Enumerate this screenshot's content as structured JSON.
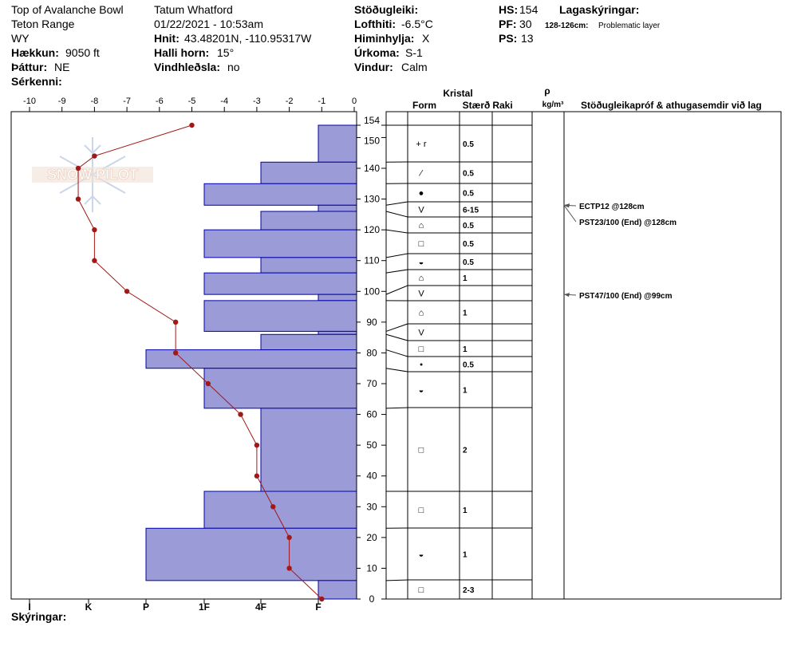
{
  "header": {
    "location": "Top of Avalanche Bowl",
    "range": "Teton Range",
    "state": "WY",
    "elevation_label": "Hækkun:",
    "elevation_value": "9050 ft",
    "aspect_label": "Þáttur:",
    "aspect_value": "NE",
    "features_label": "Sérkenni:",
    "observer": "Tatum Whatford",
    "datetime": "01/22/2021 - 10:53am",
    "coords_label": "Hnit:",
    "coords_value": "43.48201N, -110.95317W",
    "slope_label": "Halli horn:",
    "slope_value": "15°",
    "wind_load_label": "Vindhleðsla:",
    "wind_load_value": "no",
    "stability_label": "Stöðugleiki:",
    "air_temp_label": "Lofthiti:",
    "air_temp_value": "-6.5°C",
    "sky_label": "Himinhylja:",
    "sky_value": "X",
    "precip_label": "Úrkoma:",
    "precip_value": "S-1",
    "wind_label": "Vindur:",
    "wind_value": "Calm",
    "hs_label": "HS:",
    "hs_value": "154",
    "pf_label": "PF:",
    "pf_value": "30",
    "ps_label": "PS:",
    "ps_value": "13",
    "layer_notes_label": "Lagaskýringar:",
    "layer_note_range": "128-126cm:",
    "layer_note_text": "Problematic layer",
    "comments_label": "Skýringar:"
  },
  "watermark": {
    "text": "SNOW PILOT"
  },
  "table_headers": {
    "crystal": "Kristal",
    "form": "Form",
    "size": "Stærð",
    "moisture": "Raki",
    "rho": "ρ",
    "density_unit": "kg/m³",
    "tests": "Stöðugleikapróf & athugasemdir við lag"
  },
  "chart_data": {
    "type": "snow_profile",
    "temp_axis": {
      "min": -10,
      "max": 0,
      "ticks": [
        -10,
        -9,
        -8,
        -7,
        -6,
        -5,
        -4,
        -3,
        -2,
        -1,
        0
      ]
    },
    "height_axis": {
      "min": 0,
      "max": 154,
      "ticks": [
        0,
        10,
        20,
        30,
        40,
        50,
        60,
        70,
        80,
        90,
        100,
        110,
        120,
        130,
        140,
        150,
        154
      ]
    },
    "hardness_ticks": [
      "I",
      "K",
      "P",
      "1F",
      "4F",
      "F"
    ],
    "temperature_profile": [
      {
        "h": 154,
        "t": -5.0
      },
      {
        "h": 144,
        "t": -8.0
      },
      {
        "h": 140,
        "t": -8.5
      },
      {
        "h": 130,
        "t": -8.5
      },
      {
        "h": 120,
        "t": -8.0
      },
      {
        "h": 110,
        "t": -8.0
      },
      {
        "h": 100,
        "t": -7.0
      },
      {
        "h": 90,
        "t": -5.5
      },
      {
        "h": 80,
        "t": -5.5
      },
      {
        "h": 70,
        "t": -4.5
      },
      {
        "h": 60,
        "t": -3.5
      },
      {
        "h": 50,
        "t": -3.0
      },
      {
        "h": 40,
        "t": -3.0
      },
      {
        "h": 30,
        "t": -2.5
      },
      {
        "h": 20,
        "t": -2.0
      },
      {
        "h": 10,
        "t": -2.0
      },
      {
        "h": 0,
        "t": -1.0
      }
    ],
    "hardness_layers": [
      {
        "top": 154,
        "bottom": 142,
        "hardness": "F"
      },
      {
        "top": 142,
        "bottom": 135,
        "hardness": "4F"
      },
      {
        "top": 135,
        "bottom": 128,
        "hardness": "1F"
      },
      {
        "top": 128,
        "bottom": 126,
        "hardness": "F"
      },
      {
        "top": 126,
        "bottom": 120,
        "hardness": "4F"
      },
      {
        "top": 120,
        "bottom": 111,
        "hardness": "1F"
      },
      {
        "top": 111,
        "bottom": 106,
        "hardness": "4F"
      },
      {
        "top": 106,
        "bottom": 99,
        "hardness": "1F"
      },
      {
        "top": 99,
        "bottom": 97,
        "hardness": "F"
      },
      {
        "top": 97,
        "bottom": 87,
        "hardness": "1F"
      },
      {
        "top": 87,
        "bottom": 86,
        "hardness": "F"
      },
      {
        "top": 86,
        "bottom": 81,
        "hardness": "4F"
      },
      {
        "top": 81,
        "bottom": 75,
        "hardness": "P"
      },
      {
        "top": 75,
        "bottom": 62,
        "hardness": "1F"
      },
      {
        "top": 62,
        "bottom": 35,
        "hardness": "4F"
      },
      {
        "top": 35,
        "bottom": 23,
        "hardness": "1F"
      },
      {
        "top": 23,
        "bottom": 6,
        "hardness": "P"
      },
      {
        "top": 6,
        "bottom": 0,
        "hardness": "F"
      }
    ],
    "layers": [
      {
        "top": 154,
        "bottom": 142,
        "form": "+ r",
        "size": "0.5"
      },
      {
        "top": 142,
        "bottom": 135,
        "form": "⁄",
        "size": "0.5"
      },
      {
        "top": 135,
        "bottom": 128,
        "form": "●",
        "size": "0.5"
      },
      {
        "top": 128,
        "bottom": 126,
        "form": "V",
        "size": "6-15"
      },
      {
        "top": 126,
        "bottom": 120,
        "form": "⌂",
        "size": "0.5"
      },
      {
        "top": 120,
        "bottom": 111,
        "form": "□",
        "size": "0.5"
      },
      {
        "top": 111,
        "bottom": 106,
        "form": "◒",
        "size": "0.5"
      },
      {
        "top": 106,
        "bottom": 99,
        "form": "⌂",
        "size": "1"
      },
      {
        "top": 99,
        "bottom": 97,
        "form": "V",
        "size": ""
      },
      {
        "top": 97,
        "bottom": 87,
        "form": "⌂",
        "size": "1"
      },
      {
        "top": 87,
        "bottom": 86,
        "form": "V",
        "size": ""
      },
      {
        "top": 86,
        "bottom": 81,
        "form": "□",
        "size": "1"
      },
      {
        "top": 81,
        "bottom": 75,
        "form": "•",
        "size": "0.5"
      },
      {
        "top": 75,
        "bottom": 62,
        "form": "◒",
        "size": "1"
      },
      {
        "top": 62,
        "bottom": 35,
        "form": "□",
        "size": "2"
      },
      {
        "top": 35,
        "bottom": 23,
        "form": "□",
        "size": "1"
      },
      {
        "top": 23,
        "bottom": 6,
        "form": "◒",
        "size": "1"
      },
      {
        "top": 6,
        "bottom": 0,
        "form": "□",
        "size": "2-3"
      }
    ],
    "tests": [
      {
        "height": 128,
        "text": "ECTP12 @128cm"
      },
      {
        "height": 128,
        "text": "PST23/100 (End) @128cm"
      },
      {
        "height": 99,
        "text": "PST47/100 (End) @99cm"
      }
    ],
    "colors": {
      "hardness_fill": "#9b9bd8",
      "hardness_stroke": "#0000aa",
      "temp_line": "#a01818"
    }
  }
}
